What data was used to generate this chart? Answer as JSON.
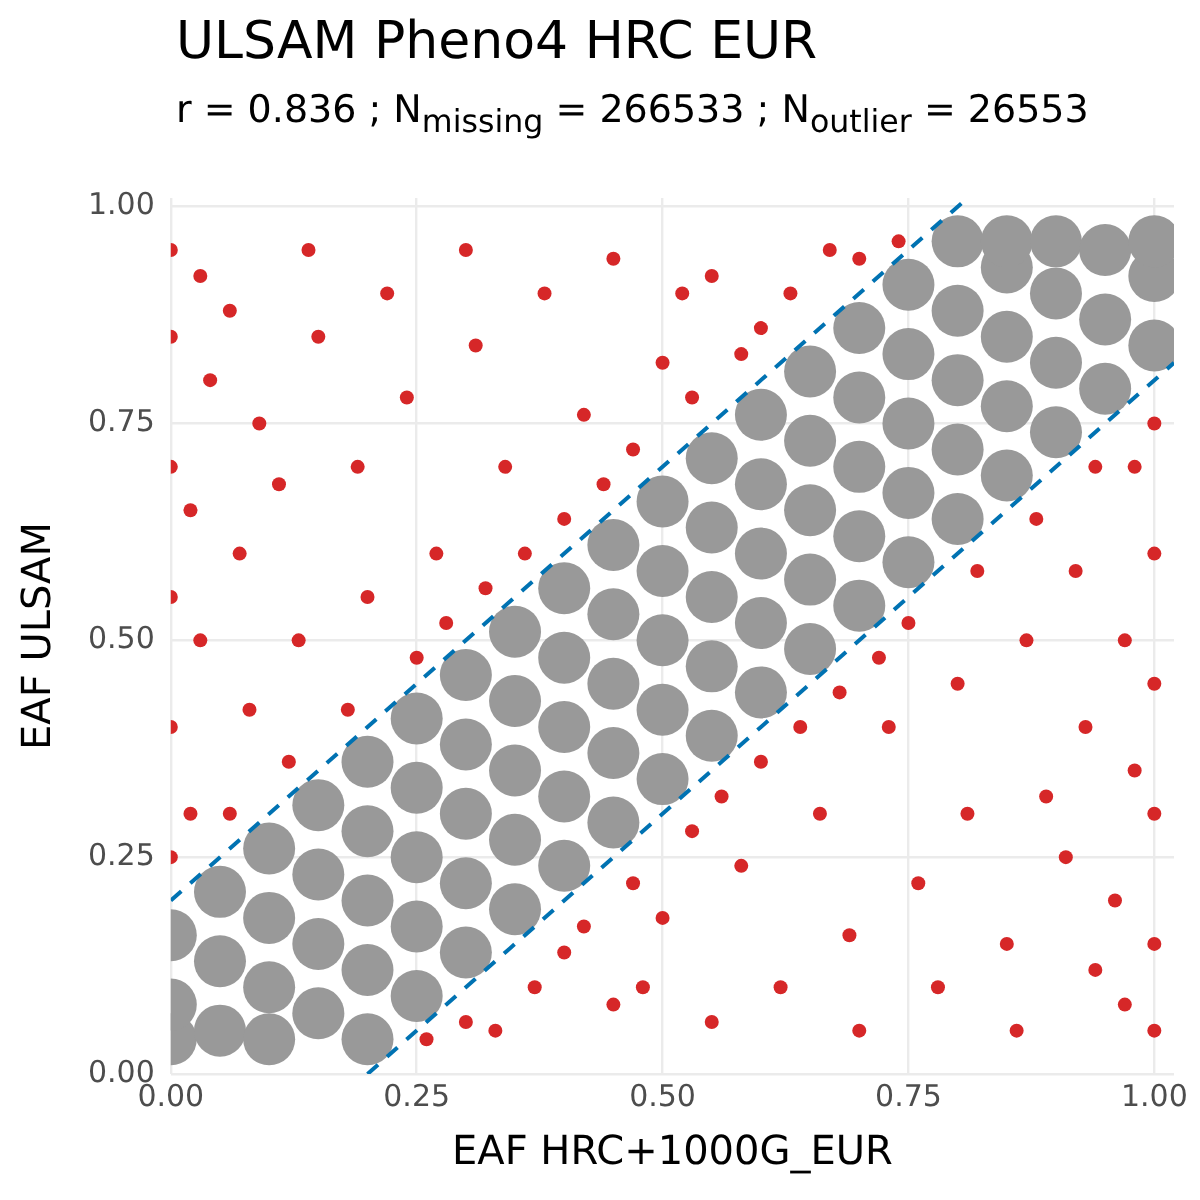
{
  "chart_data": {
    "type": "scatter",
    "title": "ULSAM Pheno4 HRC EUR",
    "subtitle": "r = 0.836 ; N$_{missing}$ = 266533 ; N$_{outlier}$ = 26553",
    "xlabel": "EAF HRC+1000G_EUR",
    "ylabel": "EAF ULSAM",
    "xlim": [
      0,
      1.02
    ],
    "ylim": [
      0,
      1.01
    ],
    "xticks": [
      {
        "value": 0,
        "label": "0.00"
      },
      {
        "value": 0.25,
        "label": "0.25"
      },
      {
        "value": 0.5,
        "label": "0.50"
      },
      {
        "value": 0.75,
        "label": "0.75"
      },
      {
        "value": 1,
        "label": "1.00"
      }
    ],
    "yticks": [
      {
        "value": 0,
        "label": "0.00"
      },
      {
        "value": 0.25,
        "label": "0.25"
      },
      {
        "value": 0.5,
        "label": "0.50"
      },
      {
        "value": 0.75,
        "label": "0.75"
      },
      {
        "value": 1,
        "label": "1.00"
      }
    ],
    "grid": true,
    "series": [
      {
        "color": "#d62728",
        "marker": "circle",
        "x": [
          0,
          0,
          0,
          0,
          0,
          0,
          0.02,
          0.03,
          0.02,
          0.04,
          0.03,
          0.06,
          0.08,
          0.07,
          0.09,
          0.06,
          0.12,
          0.13,
          0.11,
          0.15,
          0.14,
          0.18,
          0.2,
          0.19,
          0.22,
          0.25,
          0.27,
          0.24,
          0.3,
          0.32,
          0.34,
          0.31,
          0.38,
          0.4,
          0.42,
          0.45,
          0.47,
          0.5,
          0.53,
          0.55,
          0.6,
          0.63,
          0.67,
          0.7,
          0.74,
          0.36,
          0.28,
          0.44,
          0.58,
          0.52,
          1,
          1,
          1,
          1,
          1,
          1,
          0.98,
          0.97,
          0.98,
          0.96,
          0.97,
          0.94,
          0.92,
          0.93,
          0.91,
          0.94,
          0.88,
          0.87,
          0.89,
          0.85,
          0.86,
          0.82,
          0.8,
          0.81,
          0.78,
          0.75,
          0.73,
          0.76,
          0.7,
          0.68,
          0.66,
          0.69,
          0.62,
          0.6,
          0.58,
          0.55,
          0.53,
          0.5,
          0.47,
          0.45,
          0.4,
          0.37,
          0.33,
          0.3,
          0.26,
          0.64,
          0.72,
          0.56,
          0.42,
          0.48
        ],
        "values": [
          0.25,
          0.4,
          0.55,
          0.7,
          0.85,
          0.95,
          0.3,
          0.5,
          0.65,
          0.8,
          0.92,
          0.3,
          0.42,
          0.6,
          0.75,
          0.88,
          0.36,
          0.5,
          0.68,
          0.85,
          0.95,
          0.42,
          0.55,
          0.7,
          0.9,
          0.48,
          0.6,
          0.78,
          0.95,
          0.56,
          0.7,
          0.84,
          0.9,
          0.64,
          0.76,
          0.94,
          0.72,
          0.82,
          0.78,
          0.92,
          0.86,
          0.9,
          0.95,
          0.94,
          0.96,
          0.6,
          0.52,
          0.68,
          0.83,
          0.9,
          0.75,
          0.6,
          0.45,
          0.3,
          0.15,
          0.05,
          0.7,
          0.5,
          0.35,
          0.2,
          0.08,
          0.7,
          0.58,
          0.4,
          0.25,
          0.12,
          0.64,
          0.5,
          0.32,
          0.15,
          0.05,
          0.58,
          0.45,
          0.3,
          0.1,
          0.52,
          0.4,
          0.22,
          0.05,
          0.44,
          0.3,
          0.16,
          0.1,
          0.36,
          0.24,
          0.06,
          0.28,
          0.18,
          0.22,
          0.08,
          0.14,
          0.1,
          0.05,
          0.06,
          0.04,
          0.4,
          0.48,
          0.32,
          0.17,
          0.1
        ]
      },
      {
        "color": "#999999",
        "marker": "circle",
        "x": [
          0,
          0,
          0,
          0.05,
          0.05,
          0.05,
          0.1,
          0.1,
          0.1,
          0.1,
          0.15,
          0.15,
          0.15,
          0.15,
          0.2,
          0.2,
          0.2,
          0.2,
          0.2,
          0.25,
          0.25,
          0.25,
          0.25,
          0.25,
          0.3,
          0.3,
          0.3,
          0.3,
          0.3,
          0.35,
          0.35,
          0.35,
          0.35,
          0.35,
          0.4,
          0.4,
          0.4,
          0.4,
          0.4,
          0.45,
          0.45,
          0.45,
          0.45,
          0.45,
          0.5,
          0.5,
          0.5,
          0.5,
          0.5,
          0.55,
          0.55,
          0.55,
          0.55,
          0.55,
          0.6,
          0.6,
          0.6,
          0.6,
          0.6,
          0.65,
          0.65,
          0.65,
          0.65,
          0.65,
          0.7,
          0.7,
          0.7,
          0.7,
          0.7,
          0.75,
          0.75,
          0.75,
          0.75,
          0.75,
          0.8,
          0.8,
          0.8,
          0.8,
          0.8,
          0.85,
          0.85,
          0.85,
          0.85,
          0.85,
          0.9,
          0.9,
          0.9,
          0.9,
          0.95,
          0.95,
          0.95,
          1,
          1,
          1
        ],
        "values": [
          0.04,
          0.08,
          0.16,
          0.05,
          0.13,
          0.21,
          0.04,
          0.1,
          0.18,
          0.26,
          0.07,
          0.15,
          0.23,
          0.31,
          0.04,
          0.12,
          0.2,
          0.28,
          0.36,
          0.09,
          0.17,
          0.25,
          0.33,
          0.41,
          0.14,
          0.22,
          0.3,
          0.38,
          0.46,
          0.19,
          0.27,
          0.35,
          0.43,
          0.51,
          0.24,
          0.32,
          0.4,
          0.48,
          0.56,
          0.29,
          0.37,
          0.45,
          0.53,
          0.61,
          0.34,
          0.42,
          0.5,
          0.58,
          0.66,
          0.39,
          0.47,
          0.55,
          0.63,
          0.71,
          0.44,
          0.52,
          0.6,
          0.68,
          0.76,
          0.49,
          0.57,
          0.65,
          0.73,
          0.81,
          0.54,
          0.62,
          0.7,
          0.78,
          0.86,
          0.59,
          0.67,
          0.75,
          0.83,
          0.91,
          0.64,
          0.72,
          0.8,
          0.88,
          0.96,
          0.69,
          0.77,
          0.85,
          0.93,
          0.96,
          0.74,
          0.82,
          0.9,
          0.96,
          0.79,
          0.87,
          0.95,
          0.84,
          0.92,
          0.96
        ]
      },
      {
        "type": "line",
        "color": "#0072b2",
        "marker": "none",
        "line_style": "dashed",
        "x": [
          0,
          0.81
        ],
        "values": [
          0.2,
          1.01
        ]
      },
      {
        "type": "line",
        "color": "#0072b2",
        "marker": "none",
        "line_style": "dashed",
        "x": [
          0.2,
          1.02
        ],
        "values": [
          0,
          0.82
        ]
      }
    ]
  }
}
